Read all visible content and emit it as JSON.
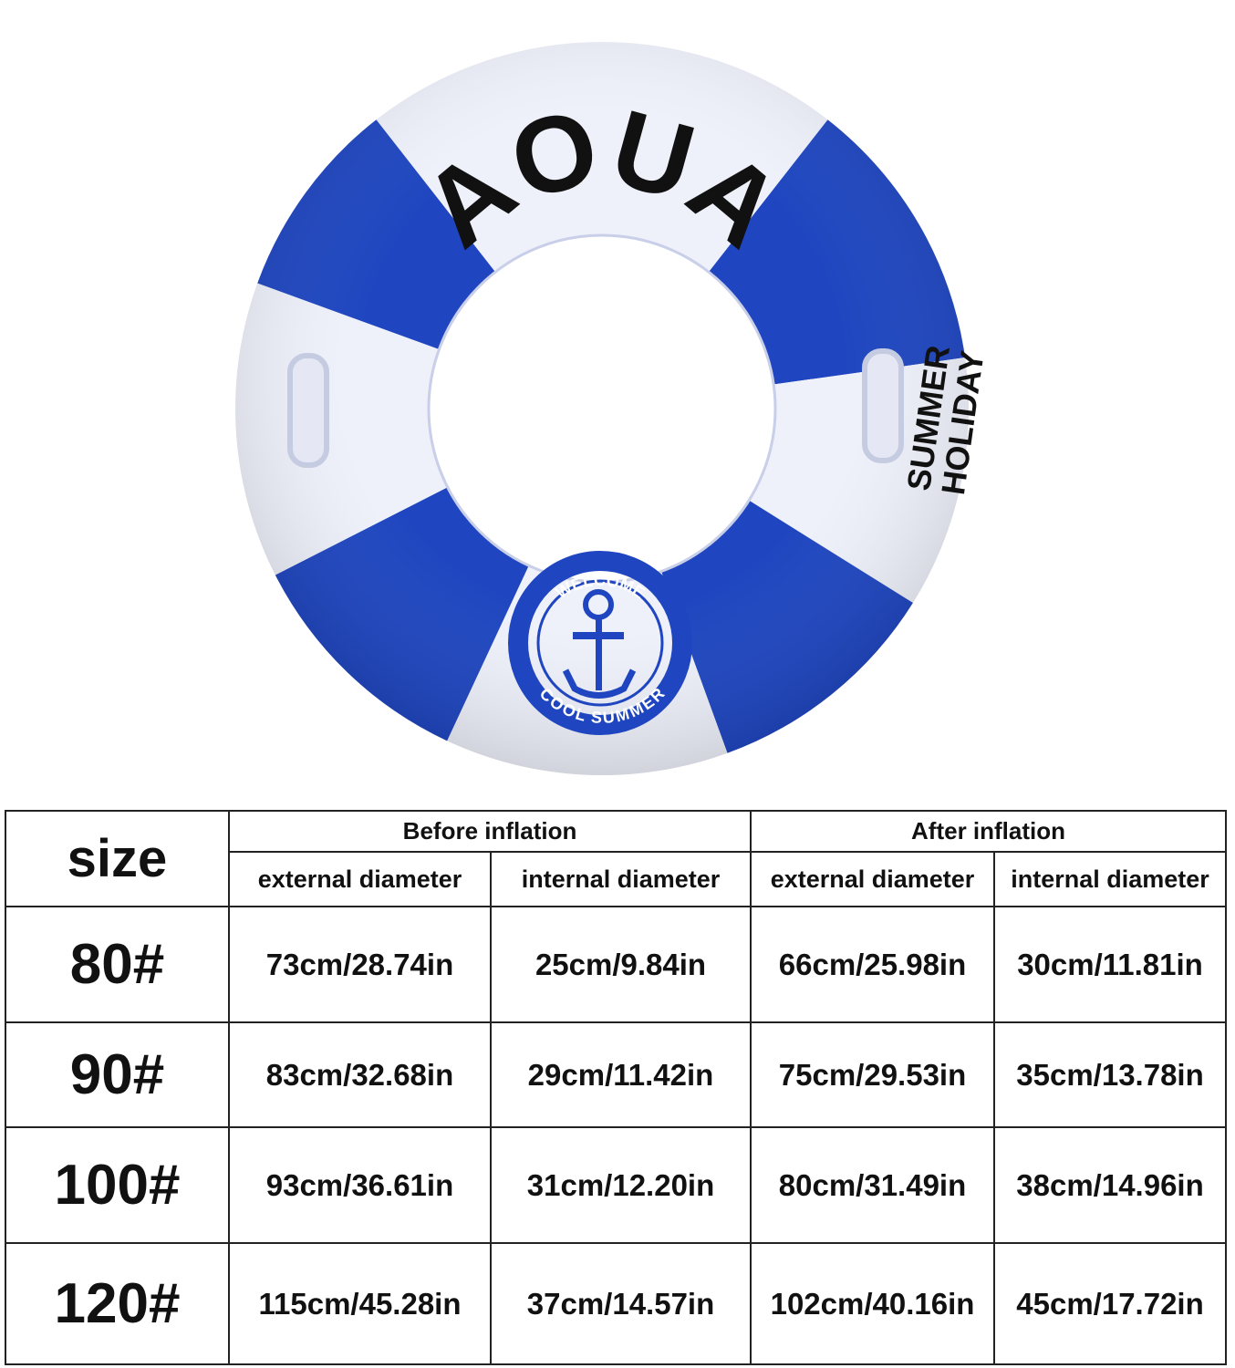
{
  "product_image": {
    "brand_text": "AOUA",
    "side_text": [
      "SUMMER",
      "HOLIDAY"
    ],
    "badge_top": "WELCOME",
    "badge_bottom": "COOL SUMMER",
    "colors": {
      "blue": "#1f46c0",
      "white": "#eef0fa"
    }
  },
  "table": {
    "size_header": "size",
    "groups": [
      "Before inflation",
      "After inflation"
    ],
    "subheaders": [
      "external diameter",
      "internal diameter",
      "external diameter",
      "internal diameter"
    ],
    "rows": [
      {
        "size": "80#",
        "values": [
          "73cm/28.74in",
          "25cm/9.84in",
          "66cm/25.98in",
          "30cm/11.81in"
        ]
      },
      {
        "size": "90#",
        "values": [
          "83cm/32.68in",
          "29cm/11.42in",
          "75cm/29.53in",
          "35cm/13.78in"
        ]
      },
      {
        "size": "100#",
        "values": [
          "93cm/36.61in",
          "31cm/12.20in",
          "80cm/31.49in",
          "38cm/14.96in"
        ]
      },
      {
        "size": "120#",
        "values": [
          "115cm/45.28in",
          "37cm/14.57in",
          "102cm/40.16in",
          "45cm/17.72in"
        ]
      }
    ]
  }
}
